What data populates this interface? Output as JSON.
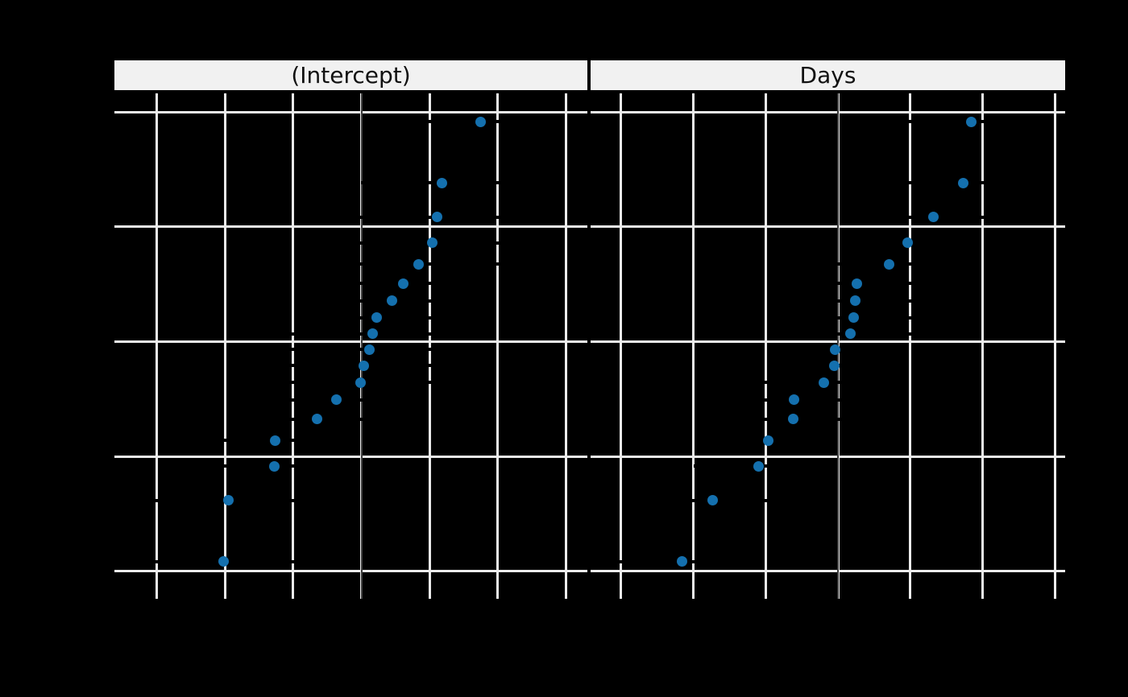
{
  "chart": {
    "background_color": "#000000",
    "strip_background_color": "#f1f1f1",
    "strip_text_color": "#111111",
    "gridline_color": "#ececec",
    "zero_line_color": "#3d3d3d",
    "errorbar_color": "#000000",
    "point_color": "#1470ae"
  },
  "chart_data": {
    "type": "scatter",
    "description": "Normal quantile (caterpillar) plot of conditional modes of random effects, one panel per term; x = effect value, y = standard normal quantiles; horizontal error bars drawn in black, vertical reference line at 0",
    "legend_position": "none",
    "grid": "on",
    "ylim": [
      -2.24,
      2.191
    ],
    "y_gridline_quantiles": [
      -2,
      -1,
      0,
      1,
      2
    ],
    "y_quantiles": [
      -1.9145,
      -1.383,
      -1.0852,
      -0.8616,
      -0.6745,
      -0.5082,
      -0.3549,
      -0.2099,
      -0.0697,
      0.0697,
      0.2099,
      0.3549,
      0.5082,
      0.6745,
      0.8616,
      1.0852,
      1.383,
      1.9145
    ],
    "panels": [
      {
        "label": "(Intercept)",
        "xlim": [
          -72.46,
          66.31
        ],
        "x_gridline_values": [
          -60,
          -40,
          -20,
          0,
          20,
          40,
          60
        ],
        "zero_reference_x": 0,
        "error_halfwidth": 23.7,
        "values": [
          -40.4,
          -38.96,
          -25.61,
          -25.21,
          -13.07,
          -7.23,
          -0.33,
          0.81,
          2.26,
          3.28,
          4.58,
          9.04,
          12.31,
          16.84,
          20.86,
          22.26,
          23.69,
          34.89
        ]
      },
      {
        "label": "Days",
        "xlim": [
          -17.06,
          15.67
        ],
        "x_gridline_values": [
          -15,
          -10,
          -5,
          0,
          5,
          10,
          15
        ],
        "zero_reference_x": 0,
        "error_halfwidth": 4.5,
        "values": [
          -10.75,
          -8.62,
          -5.45,
          -4.81,
          -3.07,
          -3.02,
          -0.99,
          -0.27,
          -0.22,
          0.87,
          1.07,
          1.17,
          1.28,
          3.54,
          4.82,
          6.61,
          8.63,
          9.2
        ]
      }
    ]
  }
}
